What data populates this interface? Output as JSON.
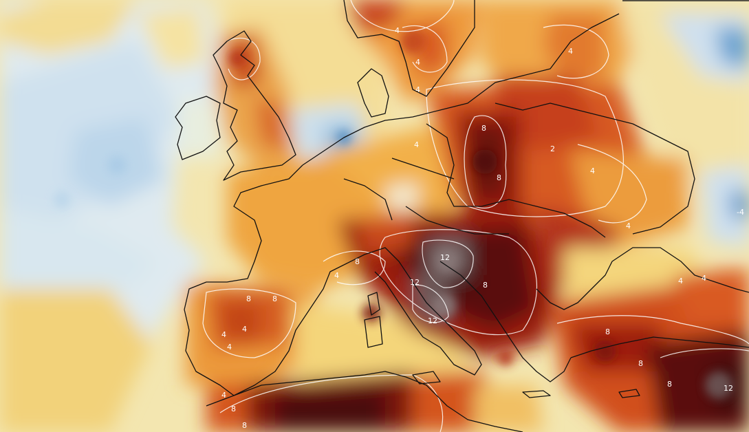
{
  "map": {
    "colors": {
      "cold_blue": "#4f8fc4",
      "light_blue": "#cfe3f1",
      "pale": "#f4f2e6",
      "yellow": "#f6d36a",
      "orange": "#ef9a34",
      "red_orange": "#d9531e",
      "dark_red": "#9b1a0c",
      "maroon": "#4a0d0a",
      "gray_core": "#7a6a6a"
    },
    "contour_labels": [
      {
        "id": "se-12",
        "text": "12"
      },
      {
        "id": "east-neg4",
        "text": "-4"
      },
      {
        "id": "adriatic-12",
        "text": "12"
      },
      {
        "id": "italy-12",
        "text": "12"
      },
      {
        "id": "italy-12b",
        "text": "12"
      },
      {
        "id": "poland-8",
        "text": "8"
      },
      {
        "id": "poland-8b",
        "text": "8"
      },
      {
        "id": "scand-4",
        "text": "4"
      },
      {
        "id": "scand-4b",
        "text": "4"
      },
      {
        "id": "scand-4c",
        "text": "4"
      },
      {
        "id": "russia-4",
        "text": "4"
      },
      {
        "id": "germany-4",
        "text": "4"
      },
      {
        "id": "ukraine-2",
        "text": "2"
      },
      {
        "id": "ukraine-4",
        "text": "4"
      },
      {
        "id": "blacksea-4",
        "text": "4"
      },
      {
        "id": "spain-8",
        "text": "8"
      },
      {
        "id": "spain-8b",
        "text": "8"
      },
      {
        "id": "spain-4",
        "text": "4"
      },
      {
        "id": "spain-4b",
        "text": "4"
      },
      {
        "id": "portugal-4",
        "text": "4"
      },
      {
        "id": "alps-4",
        "text": "4"
      },
      {
        "id": "alps-8",
        "text": "8"
      },
      {
        "id": "balkan-8",
        "text": "8"
      },
      {
        "id": "turkey-8",
        "text": "8"
      },
      {
        "id": "turkey-8b",
        "text": "8"
      },
      {
        "id": "turkey-4",
        "text": "4"
      },
      {
        "id": "turkey-4b",
        "text": "4"
      },
      {
        "id": "africa-8",
        "text": "8"
      },
      {
        "id": "africa-8b",
        "text": "8"
      },
      {
        "id": "africa-4",
        "text": "4"
      },
      {
        "id": "mideast-8",
        "text": "8"
      }
    ]
  }
}
